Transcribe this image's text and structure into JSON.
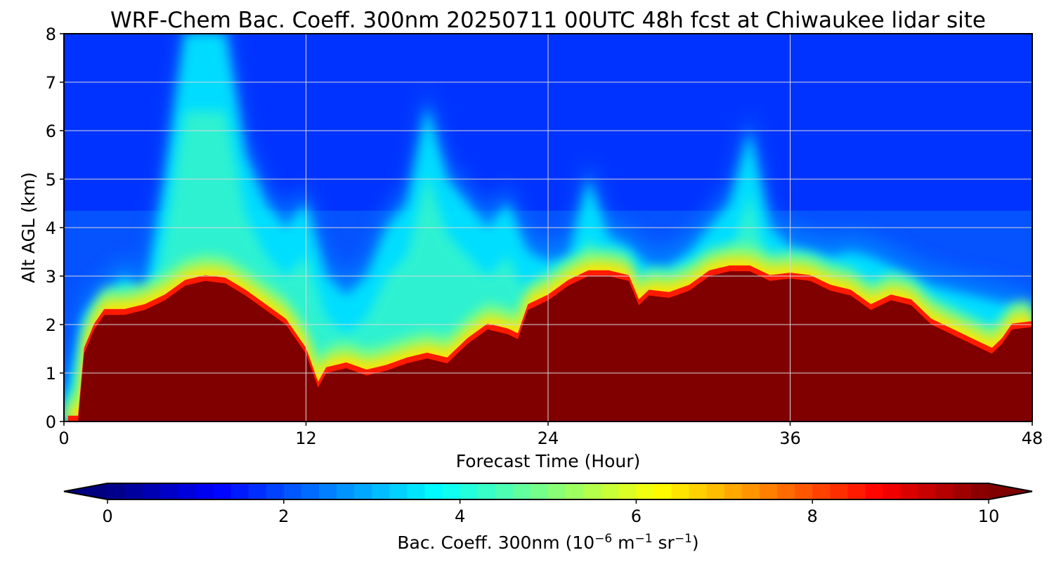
{
  "chart_data": {
    "type": "heatmap",
    "title": "WRF-Chem Bac. Coeff. 300nm  20250711 00UTC 48h fcst at Chiwaukee lidar site",
    "xlabel": "Forecast Time (Hour)",
    "ylabel": "Alt AGL (km)",
    "xlim": [
      0,
      48
    ],
    "ylim": [
      0,
      8
    ],
    "x_ticks": [
      0,
      12,
      24,
      36,
      48
    ],
    "y_ticks": [
      0,
      1,
      2,
      3,
      4,
      5,
      6,
      7,
      8
    ],
    "grid": true,
    "colormap": "jet",
    "colorbar": {
      "label_main": "Bac. Coeff. 300nm  (10",
      "label_exp1": "−6",
      "label_mid": " m",
      "label_exp2": "−1",
      "label_mid2": " sr",
      "label_exp3": "−1",
      "label_end": ")",
      "range": [
        0,
        10
      ],
      "ticks": [
        0,
        2,
        4,
        6,
        8,
        10
      ],
      "extend": "both",
      "placement": "bottom"
    },
    "saturated_layer_top_km": {
      "hours": [
        0.2,
        0.7,
        1.0,
        1.5,
        2.0,
        3.0,
        4.0,
        5.0,
        6.0,
        7.0,
        8.0,
        9.0,
        10.0,
        11.0,
        12.0,
        12.6,
        13.0,
        14.0,
        15.0,
        16.0,
        17.0,
        18.0,
        19.0,
        20.0,
        21.0,
        22.0,
        22.5,
        23.0,
        24.0,
        25.0,
        26.0,
        27.0,
        28.0,
        28.5,
        29.0,
        30.0,
        31.0,
        32.0,
        33.0,
        34.0,
        35.0,
        36.0,
        37.0,
        38.0,
        39.0,
        40.0,
        41.0,
        42.0,
        43.0,
        44.0,
        45.0,
        46.0,
        46.5,
        47.0,
        48.0
      ],
      "values": [
        0.0,
        0.0,
        1.4,
        1.9,
        2.2,
        2.2,
        2.3,
        2.5,
        2.8,
        2.9,
        2.85,
        2.6,
        2.3,
        2.0,
        1.4,
        0.7,
        1.0,
        1.1,
        0.95,
        1.05,
        1.2,
        1.3,
        1.2,
        1.6,
        1.9,
        1.8,
        1.7,
        2.3,
        2.5,
        2.8,
        3.0,
        3.0,
        2.9,
        2.4,
        2.6,
        2.55,
        2.7,
        3.0,
        3.1,
        3.1,
        2.9,
        2.95,
        2.9,
        2.7,
        2.6,
        2.3,
        2.5,
        2.4,
        2.0,
        1.8,
        1.6,
        1.4,
        1.6,
        1.9,
        1.95
      ]
    },
    "aerosol_plume_top_km": {
      "hours": [
        0,
        1,
        2,
        3,
        4,
        5,
        6,
        7,
        8,
        9,
        10,
        11,
        12,
        13,
        14,
        15,
        16,
        17,
        18,
        19,
        20,
        21,
        22,
        23,
        24,
        25,
        26,
        27,
        28,
        29,
        30,
        31,
        32,
        33,
        34,
        35,
        36,
        37,
        38,
        39,
        40,
        41,
        42,
        43,
        44,
        45,
        46,
        47,
        48
      ],
      "values": [
        0.3,
        2.2,
        2.6,
        3.0,
        2.6,
        5.0,
        8.0,
        8.0,
        8.0,
        5.5,
        4.5,
        4.0,
        4.5,
        3.0,
        2.6,
        3.0,
        4.0,
        4.5,
        6.5,
        5.0,
        4.5,
        4.0,
        4.5,
        3.5,
        3.3,
        3.4,
        5.0,
        3.8,
        3.6,
        3.2,
        3.2,
        3.5,
        4.0,
        4.5,
        6.0,
        4.0,
        3.6,
        3.5,
        3.4,
        3.5,
        3.4,
        3.2,
        3.0,
        2.8,
        2.7,
        2.6,
        2.5,
        2.4,
        2.3
      ]
    }
  }
}
